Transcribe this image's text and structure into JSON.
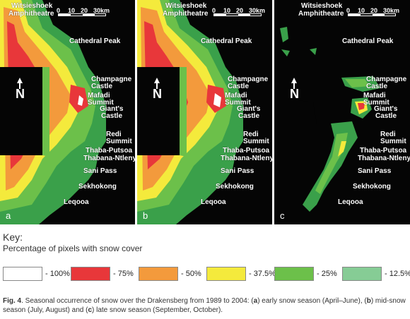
{
  "panels": [
    {
      "letter": "a"
    },
    {
      "letter": "b"
    },
    {
      "letter": "c"
    }
  ],
  "places": {
    "witsieshoek": "Witsieshoek",
    "amphitheatre": "Amphitheatre",
    "cathedral": "Cathedral Peak",
    "champagne": "Champagne",
    "castle": "Castle",
    "mafadi": "Mafadi",
    "summit": "Summit",
    "giants": "Giant's",
    "giants_castle": "Castle",
    "redi": "Redi",
    "redi_summit": "Summit",
    "thaba_putsoa": "Thaba-Putsoa",
    "thabana": "Thabana-Ntlenyana",
    "sani": "Sani Pass",
    "sekhokong": "Sekhokong",
    "leqooa": "Leqooa"
  },
  "scale": {
    "ticks": [
      "0",
      "10",
      "20",
      "30km"
    ]
  },
  "north": "N",
  "key": {
    "title": "Key:",
    "subtitle": "Percentage of pixels with snow cover",
    "items": [
      {
        "label": "- 100%",
        "color": "#ffffff"
      },
      {
        "label": "- 75%",
        "color": "#e8373a"
      },
      {
        "label": "- 50%",
        "color": "#f39a3c"
      },
      {
        "label": "- 37.5%",
        "color": "#f4ea3c"
      },
      {
        "label": "- 25%",
        "color": "#6cc04a"
      },
      {
        "label": "- 12.5%",
        "color": "#86cc95"
      }
    ]
  },
  "caption": {
    "fig": "Fig. 4",
    "text_1": ". Seasonal occurrence of snow over the Drakensberg from 1989 to 2004: (",
    "a": "a",
    "text_2": ") early snow season (April–June), (",
    "b": "b",
    "text_3": ") mid-snow season (July, August) and (",
    "c": "c",
    "text_4": ") late snow season (September, October)."
  }
}
